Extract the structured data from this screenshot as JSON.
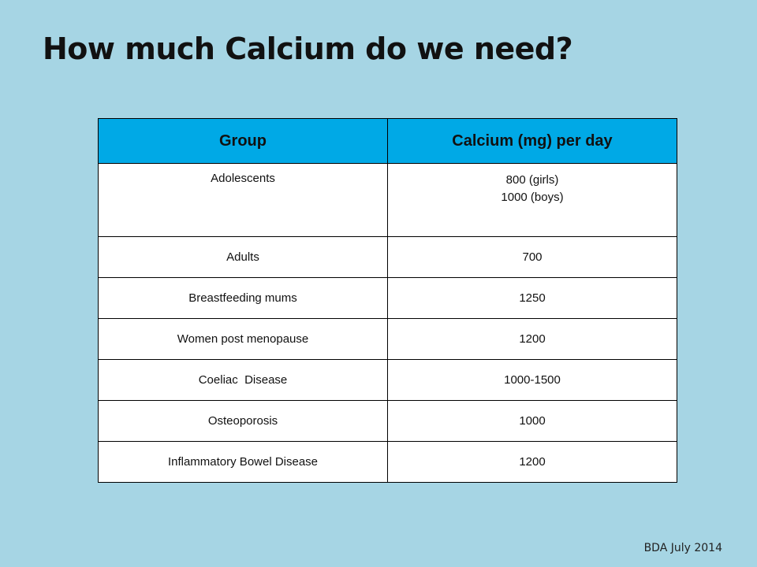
{
  "slide": {
    "title": "How much Calcium do we need?",
    "footer": "BDA July 2014"
  },
  "table": {
    "headers": [
      "Group",
      "Calcium (mg) per day"
    ],
    "rows": [
      {
        "group": "Adolescents",
        "calcium_lines": [
          "800 (girls)",
          "1000 (boys)"
        ]
      },
      {
        "group": "Adults",
        "calcium": "700"
      },
      {
        "group": "Breastfeeding mums",
        "calcium": "1250"
      },
      {
        "group": "Women post menopause",
        "calcium": "1200"
      },
      {
        "group": "Coeliac  Disease",
        "calcium": "1000-1500"
      },
      {
        "group": "Osteoporosis",
        "calcium": "1000"
      },
      {
        "group": "Inflammatory Bowel Disease",
        "calcium": "1200"
      }
    ]
  },
  "colors": {
    "background": "#a6d5e4",
    "header_fill": "#00a9e6",
    "cell_fill": "#ffffff",
    "border": "#000000"
  }
}
